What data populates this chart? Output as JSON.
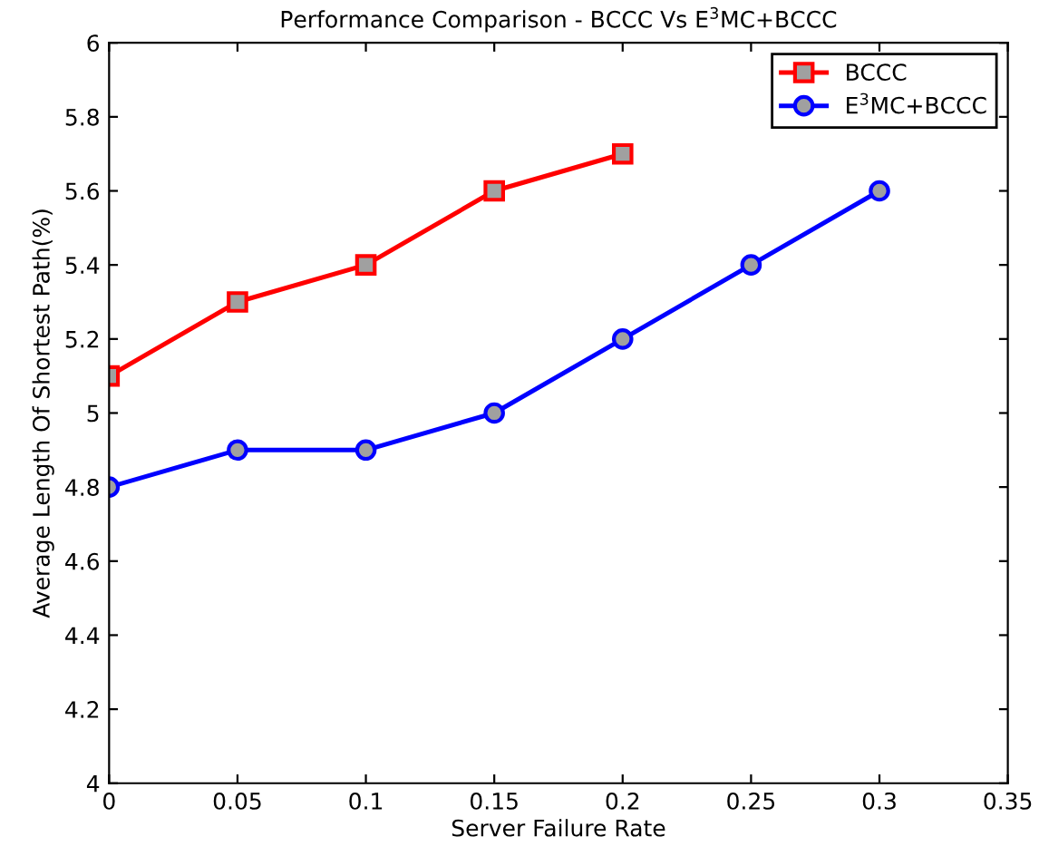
{
  "chart_data": {
    "type": "line",
    "title": "Performance Comparison - BCCC Vs E$^{3}$MC+BCCC",
    "xlabel": "Server Failure Rate",
    "ylabel": "Average Length Of Shortest Path(%)",
    "x": [
      0,
      0.05,
      0.1,
      0.15,
      0.2,
      0.25,
      0.3
    ],
    "series": [
      {
        "name": "BCCC",
        "color": "#ff0000",
        "marker": "square",
        "values": [
          5.1,
          5.3,
          5.4,
          5.6,
          5.7,
          null,
          null
        ]
      },
      {
        "name": "E$^{3}$MC+BCCC",
        "color": "#0000ff",
        "marker": "circle",
        "values": [
          4.8,
          4.9,
          4.9,
          5.0,
          5.2,
          5.4,
          5.6
        ]
      }
    ],
    "xlim": [
      0,
      0.35
    ],
    "xticks": [
      0,
      0.05,
      0.1,
      0.15,
      0.2,
      0.25,
      0.3,
      0.35
    ],
    "ylim": [
      4,
      6
    ],
    "yticks": [
      4,
      4.2,
      4.4,
      4.6,
      4.8,
      5,
      5.2,
      5.4,
      5.6,
      5.8,
      6
    ],
    "grid": false,
    "legend": "top right",
    "line_style": "solid"
  }
}
